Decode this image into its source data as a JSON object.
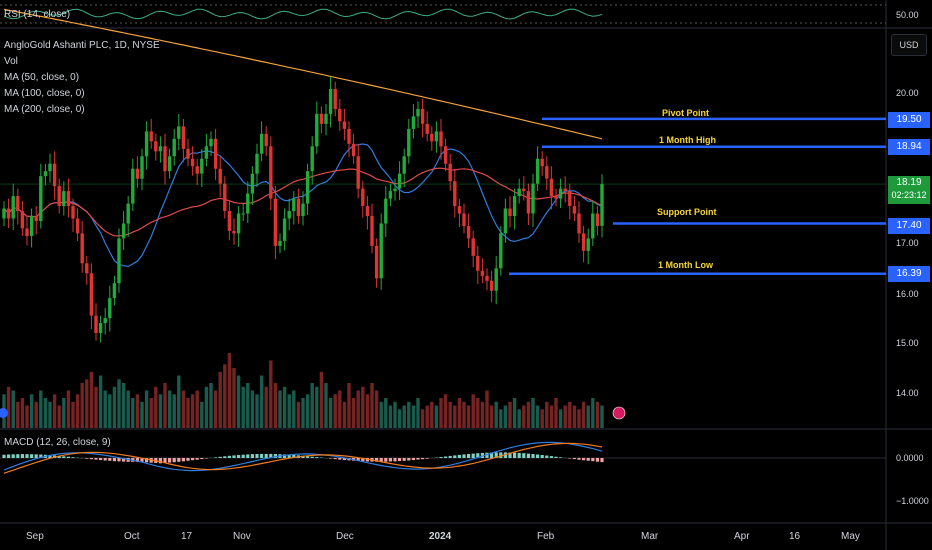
{
  "rsi_label": "RSI (14, close)",
  "rsi_level": "50.00",
  "symbol_title": "AngloGold Ashanti PLC, 1D, NYSE",
  "indicators": [
    "Vol",
    "MA (50, close, 0)",
    "MA (100, close, 0)",
    "MA (200, close, 0)"
  ],
  "currency": "USD",
  "macd_label": "MACD (12, 26, close, 9)",
  "current_price": "18.19",
  "countdown": "02:23:12",
  "price_ticks": [
    "20.00",
    "17.00",
    "16.00",
    "15.00",
    "14.00"
  ],
  "macd_ticks": [
    "0.0000",
    "−1.0000"
  ],
  "x_labels": [
    "Sep",
    "Oct",
    "17",
    "Nov",
    "Dec",
    "2024",
    "Feb",
    "Mar",
    "Apr",
    "16",
    "May"
  ],
  "annotations": [
    {
      "label": "Pivot Point",
      "value": "19.50"
    },
    {
      "label": "1 Month High",
      "value": "18.94"
    },
    {
      "label": "Support Point",
      "value": "17.40"
    },
    {
      "label": "1 Month Low",
      "value": "16.39"
    }
  ],
  "colors": {
    "up": "#22ab3d",
    "down": "#e03434",
    "ma50": "#2f7ce0",
    "ma100": "#e04a4a",
    "ma200": "#f0a33c",
    "level": "#2962ff",
    "annotation": "#f7d63a",
    "macd": "#2f7ce0",
    "signal": "#f07a1c"
  },
  "chart_data": {
    "type": "candlestick",
    "symbol": "AngloGold Ashanti PLC",
    "interval": "1D",
    "exchange": "NYSE",
    "ylim": [
      13.5,
      21.0
    ],
    "last_price": 18.19,
    "levels": [
      {
        "name": "Pivot Point",
        "value": 19.5
      },
      {
        "name": "1 Month High",
        "value": 18.94
      },
      {
        "name": "Support Point",
        "value": 17.4
      },
      {
        "name": "1 Month Low",
        "value": 16.39
      }
    ],
    "closes": [
      17.7,
      17.5,
      17.95,
      17.65,
      17.3,
      17.15,
      17.55,
      17.45,
      18.35,
      18.45,
      18.6,
      18.15,
      17.75,
      18.05,
      17.75,
      17.5,
      17.2,
      16.6,
      16.4,
      15.55,
      15.2,
      15.4,
      15.5,
      15.9,
      16.2,
      17.1,
      17.4,
      17.8,
      18.5,
      18.3,
      18.75,
      19.25,
      19.05,
      18.85,
      18.95,
      18.45,
      18.75,
      19.1,
      19.35,
      18.9,
      18.7,
      18.55,
      18.4,
      18.7,
      18.95,
      19.1,
      18.5,
      18.2,
      17.65,
      17.25,
      17.2,
      17.6,
      17.6,
      18.0,
      18.4,
      18.8,
      19.2,
      18.95,
      17.9,
      16.95,
      17.05,
      17.5,
      17.65,
      17.9,
      17.55,
      17.8,
      18.45,
      18.95,
      19.6,
      19.4,
      19.6,
      20.1,
      19.7,
      19.45,
      19.3,
      19.0,
      18.75,
      18.1,
      17.75,
      17.55,
      16.95,
      16.3,
      17.4,
      17.9,
      18.05,
      18.1,
      18.4,
      18.75,
      19.3,
      19.55,
      19.7,
      19.4,
      19.2,
      19.05,
      19.25,
      18.95,
      18.6,
      18.25,
      17.75,
      17.6,
      17.35,
      17.1,
      16.75,
      16.45,
      16.35,
      16.25,
      16.05,
      16.5,
      17.2,
      17.7,
      17.55,
      17.95,
      18.1,
      18.05,
      17.6,
      18.2,
      18.7,
      18.55,
      18.3,
      17.95,
      17.9,
      18.1,
      18.05,
      17.75,
      17.6,
      17.2,
      16.85,
      17.1,
      17.6,
      17.35,
      18.19
    ],
    "volume": [
      0.45,
      0.55,
      0.5,
      0.35,
      0.4,
      0.3,
      0.45,
      0.35,
      0.5,
      0.4,
      0.35,
      0.45,
      0.3,
      0.4,
      0.5,
      0.35,
      0.45,
      0.6,
      0.65,
      0.75,
      0.55,
      0.7,
      0.5,
      0.45,
      0.55,
      0.65,
      0.6,
      0.5,
      0.4,
      0.45,
      0.35,
      0.5,
      0.4,
      0.55,
      0.45,
      0.6,
      0.5,
      0.45,
      0.7,
      0.5,
      0.4,
      0.45,
      0.5,
      0.35,
      0.55,
      0.6,
      0.5,
      0.75,
      0.85,
      1.0,
      0.8,
      0.7,
      0.55,
      0.6,
      0.5,
      0.45,
      0.7,
      0.55,
      0.9,
      0.6,
      0.5,
      0.55,
      0.45,
      0.5,
      0.35,
      0.4,
      0.45,
      0.6,
      0.55,
      0.75,
      0.6,
      0.4,
      0.45,
      0.5,
      0.35,
      0.6,
      0.4,
      0.5,
      0.55,
      0.45,
      0.6,
      0.5,
      0.35,
      0.4,
      0.3,
      0.35,
      0.25,
      0.3,
      0.35,
      0.3,
      0.4,
      0.25,
      0.3,
      0.35,
      0.3,
      0.4,
      0.45,
      0.35,
      0.3,
      0.4,
      0.35,
      0.3,
      0.45,
      0.4,
      0.35,
      0.5,
      0.3,
      0.35,
      0.25,
      0.3,
      0.35,
      0.4,
      0.25,
      0.3,
      0.35,
      0.4,
      0.3,
      0.25,
      0.35,
      0.3,
      0.4,
      0.25,
      0.3,
      0.35,
      0.3,
      0.25,
      0.35,
      0.3,
      0.4,
      0.35,
      0.3
    ]
  }
}
